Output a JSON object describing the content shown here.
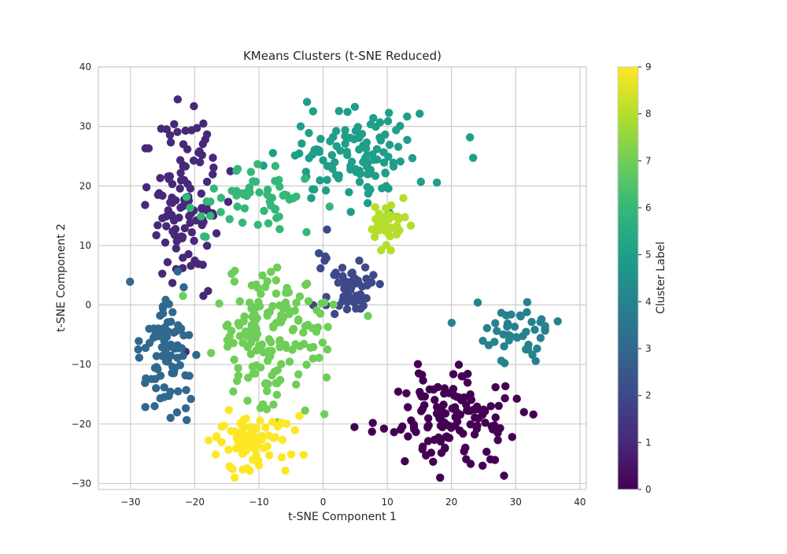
{
  "chart_data": {
    "type": "scatter",
    "title": "KMeans Clusters (t-SNE Reduced)",
    "xlabel": "t-SNE Component 1",
    "ylabel": "t-SNE Component 2",
    "xlim": [
      -35,
      41
    ],
    "ylim": [
      -31,
      40
    ],
    "xticks": [
      -30,
      -20,
      -10,
      0,
      10,
      20,
      30,
      40
    ],
    "yticks": [
      -30,
      -20,
      -10,
      0,
      10,
      20,
      30,
      40
    ],
    "grid": true,
    "colormap": "viridis",
    "colorbar": {
      "label": "Cluster Label",
      "range": [
        0,
        9
      ],
      "ticks": [
        0,
        1,
        2,
        3,
        4,
        5,
        6,
        7,
        8,
        9
      ]
    },
    "clusters": [
      {
        "label": 0,
        "color": "#440154",
        "center": [
          20,
          -19
        ],
        "spread": [
          10,
          7
        ],
        "count": 140
      },
      {
        "label": 1,
        "color": "#482878",
        "center": [
          -21,
          17
        ],
        "spread": [
          5,
          14
        ],
        "count": 115
      },
      {
        "label": 2,
        "color": "#3e4989",
        "center": [
          4,
          3
        ],
        "spread": [
          4,
          5
        ],
        "count": 60
      },
      {
        "label": 3,
        "color": "#31688e",
        "center": [
          -25,
          -8
        ],
        "spread": [
          4,
          10
        ],
        "count": 85
      },
      {
        "label": 4,
        "color": "#26828e",
        "center": [
          31,
          -5
        ],
        "spread": [
          6,
          4
        ],
        "count": 45
      },
      {
        "label": 5,
        "color": "#1f9e89",
        "center": [
          5,
          25
        ],
        "spread": [
          10,
          8
        ],
        "count": 120
      },
      {
        "label": 6,
        "color": "#35b779",
        "center": [
          -10,
          18
        ],
        "spread": [
          8,
          5
        ],
        "count": 55
      },
      {
        "label": 7,
        "color": "#6ece58",
        "center": [
          -8,
          -5
        ],
        "spread": [
          8,
          10
        ],
        "count": 160
      },
      {
        "label": 8,
        "color": "#b5de2b",
        "center": [
          10,
          13
        ],
        "spread": [
          3,
          4
        ],
        "count": 40
      },
      {
        "label": 9,
        "color": "#fde725",
        "center": [
          -12,
          -23
        ],
        "spread": [
          6,
          4
        ],
        "count": 85
      }
    ]
  }
}
